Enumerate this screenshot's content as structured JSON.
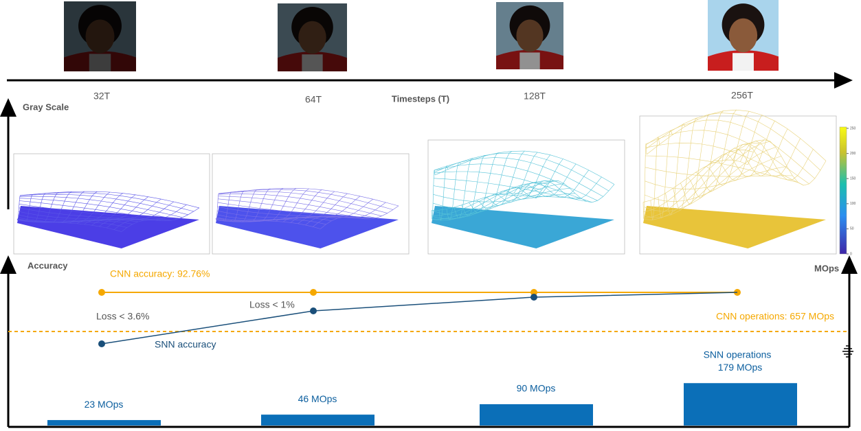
{
  "header": {
    "timesteps": [
      "32T",
      "64T",
      "128T",
      "256T"
    ],
    "axis_label": "Timesteps (T)"
  },
  "gray_scale": {
    "label": "Gray Scale",
    "colorbar_ticks": [
      0,
      50,
      100,
      150,
      200,
      250
    ]
  },
  "accuracy": {
    "label": "Accuracy",
    "cnn_label": "CNN accuracy: 92.76%",
    "snn_label": "SNN accuracy",
    "losses": [
      "Loss < 3.6%",
      "Loss < 1%"
    ]
  },
  "operations": {
    "label": "MOps",
    "cnn_label": "CNN operations: 657 MOps",
    "snn_label": "SNN operations",
    "bars": [
      {
        "value": 23,
        "label": "23 MOps"
      },
      {
        "value": 46,
        "label": "46 MOps"
      },
      {
        "value": 90,
        "label": "90 MOps"
      },
      {
        "value": 179,
        "label": "179 MOps"
      }
    ]
  }
}
